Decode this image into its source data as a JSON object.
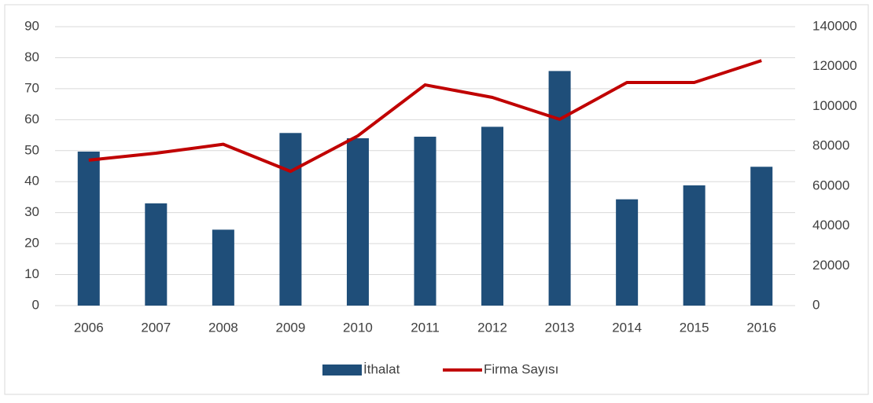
{
  "chart_data": {
    "type": "bar_line",
    "categories": [
      "2006",
      "2007",
      "2008",
      "2009",
      "2010",
      "2011",
      "2012",
      "2013",
      "2014",
      "2015",
      "2016"
    ],
    "series": [
      {
        "name": "İthalat",
        "type": "bar",
        "color": "#1f4e79",
        "values": [
          49.7,
          33,
          24.5,
          55.7,
          54,
          54.5,
          57.7,
          75.7,
          34.3,
          38.8,
          44.8
        ]
      },
      {
        "name": "Firma Sayısı",
        "type": "line",
        "axis": "y2",
        "color": "#c00000",
        "values": [
          73000,
          76500,
          81000,
          67400,
          85200,
          110800,
          104500,
          93500,
          112000,
          112000,
          123000
        ]
      }
    ],
    "ylim": [
      0,
      90
    ],
    "yticks": [
      0,
      10,
      20,
      30,
      40,
      50,
      60,
      70,
      80,
      90
    ],
    "y2lim": [
      0,
      140000
    ],
    "y2ticks": [
      0,
      20000,
      40000,
      60000,
      80000,
      100000,
      120000,
      140000
    ],
    "grid": true,
    "legend": "bottom"
  }
}
